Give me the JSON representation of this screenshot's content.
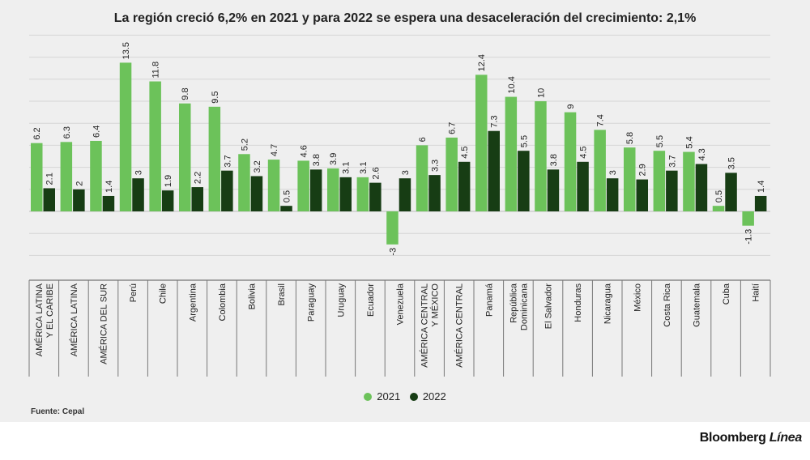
{
  "chart_data": {
    "type": "bar",
    "title": "La región creció 6,2% en 2021 y para 2022 se espera una desaceleración del crecimiento: 2,1%",
    "categories": [
      "AMÉRICA LATINA Y EL CARIBE",
      "AMÉRICA LATINA",
      "AMÉRICA DEL SUR",
      "Perú",
      "Chile",
      "Argentina",
      "Colombia",
      "Bolivia",
      "Brasil",
      "Paraguay",
      "Uruguay",
      "Ecuador",
      "Venezuela",
      "AMÉRICA CENTRAL Y MÉXICO",
      "AMÉRICA CENTRAL",
      "Panamá",
      "República Dominicana",
      "El Salvador",
      "Honduras",
      "Nicaragua",
      "México",
      "Costa Rica",
      "Guatemala",
      "Cuba",
      "Haití"
    ],
    "series": [
      {
        "name": "2021",
        "color": "#6cc25a",
        "values": [
          6.2,
          6.3,
          6.4,
          13.5,
          11.8,
          9.8,
          9.5,
          5.2,
          4.7,
          4.6,
          3.9,
          3.1,
          -3,
          6,
          6.7,
          12.4,
          10.4,
          10,
          9,
          7.4,
          5.8,
          5.5,
          5.4,
          0.5,
          -1.3
        ]
      },
      {
        "name": "2022",
        "color": "#173d14",
        "values": [
          2.1,
          2,
          1.4,
          3,
          1.9,
          2.2,
          3.7,
          3.2,
          0.5,
          3.8,
          3.1,
          2.6,
          3,
          3.3,
          4.5,
          7.3,
          5.5,
          3.8,
          4.5,
          3,
          2.9,
          3.7,
          4.3,
          3.5,
          1.4
        ]
      }
    ],
    "ylim": [
      -4,
      16
    ],
    "xlabel": "",
    "ylabel": "",
    "grid": true,
    "legend": "bottom-center"
  },
  "footer": {
    "source": "Fuente: Cepal",
    "brand_main": "Bloomberg",
    "brand_accent": "Línea"
  }
}
